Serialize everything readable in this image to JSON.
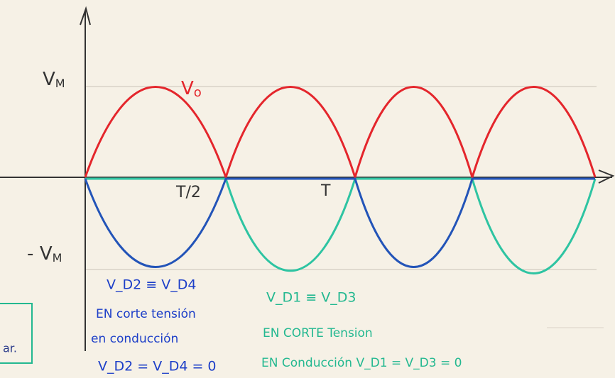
{
  "labels": {
    "vm_pos": {
      "main": "V",
      "sub": "M"
    },
    "vo": {
      "main": "V",
      "sub": "o"
    },
    "half_period": "T/2",
    "period": "T",
    "vm_neg": {
      "sign": "-",
      "main": "V",
      "sub": "M"
    },
    "box_fragment": "ar."
  },
  "notes": {
    "d2_d4": {
      "title": "V_D2 ≡ V_D4",
      "cut": "EN corte tensión",
      "conduction": "en conducción",
      "equation": "V_D2 = V_D4 = 0"
    },
    "d1_d3": {
      "title": "V_D1 ≡ V_D3",
      "cut": "EN CORTE Tension",
      "conduction": "EN Conducción V_D1 = V_D3 = 0"
    }
  }
}
